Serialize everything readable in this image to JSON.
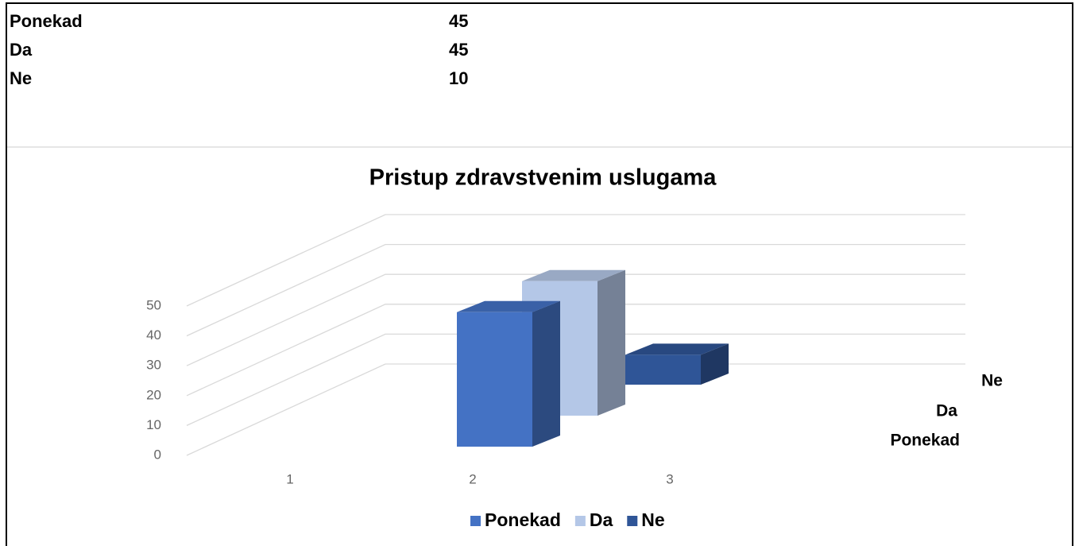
{
  "table": {
    "rows": [
      [
        "Ponekad",
        "45"
      ],
      [
        "Da",
        "45"
      ],
      [
        "Ne",
        "10"
      ]
    ]
  },
  "chart_data": {
    "type": "bar",
    "title": "Pristup zdravstvenim uslugama",
    "categories": [
      "1",
      "2",
      "3"
    ],
    "series": [
      {
        "name": "Ponekad",
        "color": "#4472c4",
        "values": [
          null,
          45,
          null
        ]
      },
      {
        "name": "Da",
        "color": "#b4c7e7",
        "values": [
          null,
          45,
          null
        ]
      },
      {
        "name": "Ne",
        "color": "#2f5597",
        "values": [
          null,
          null,
          10
        ]
      }
    ],
    "ylim": [
      0,
      50
    ],
    "yticks": [
      0,
      10,
      20,
      30,
      40,
      50
    ],
    "grid": true,
    "legend": "bottom"
  }
}
